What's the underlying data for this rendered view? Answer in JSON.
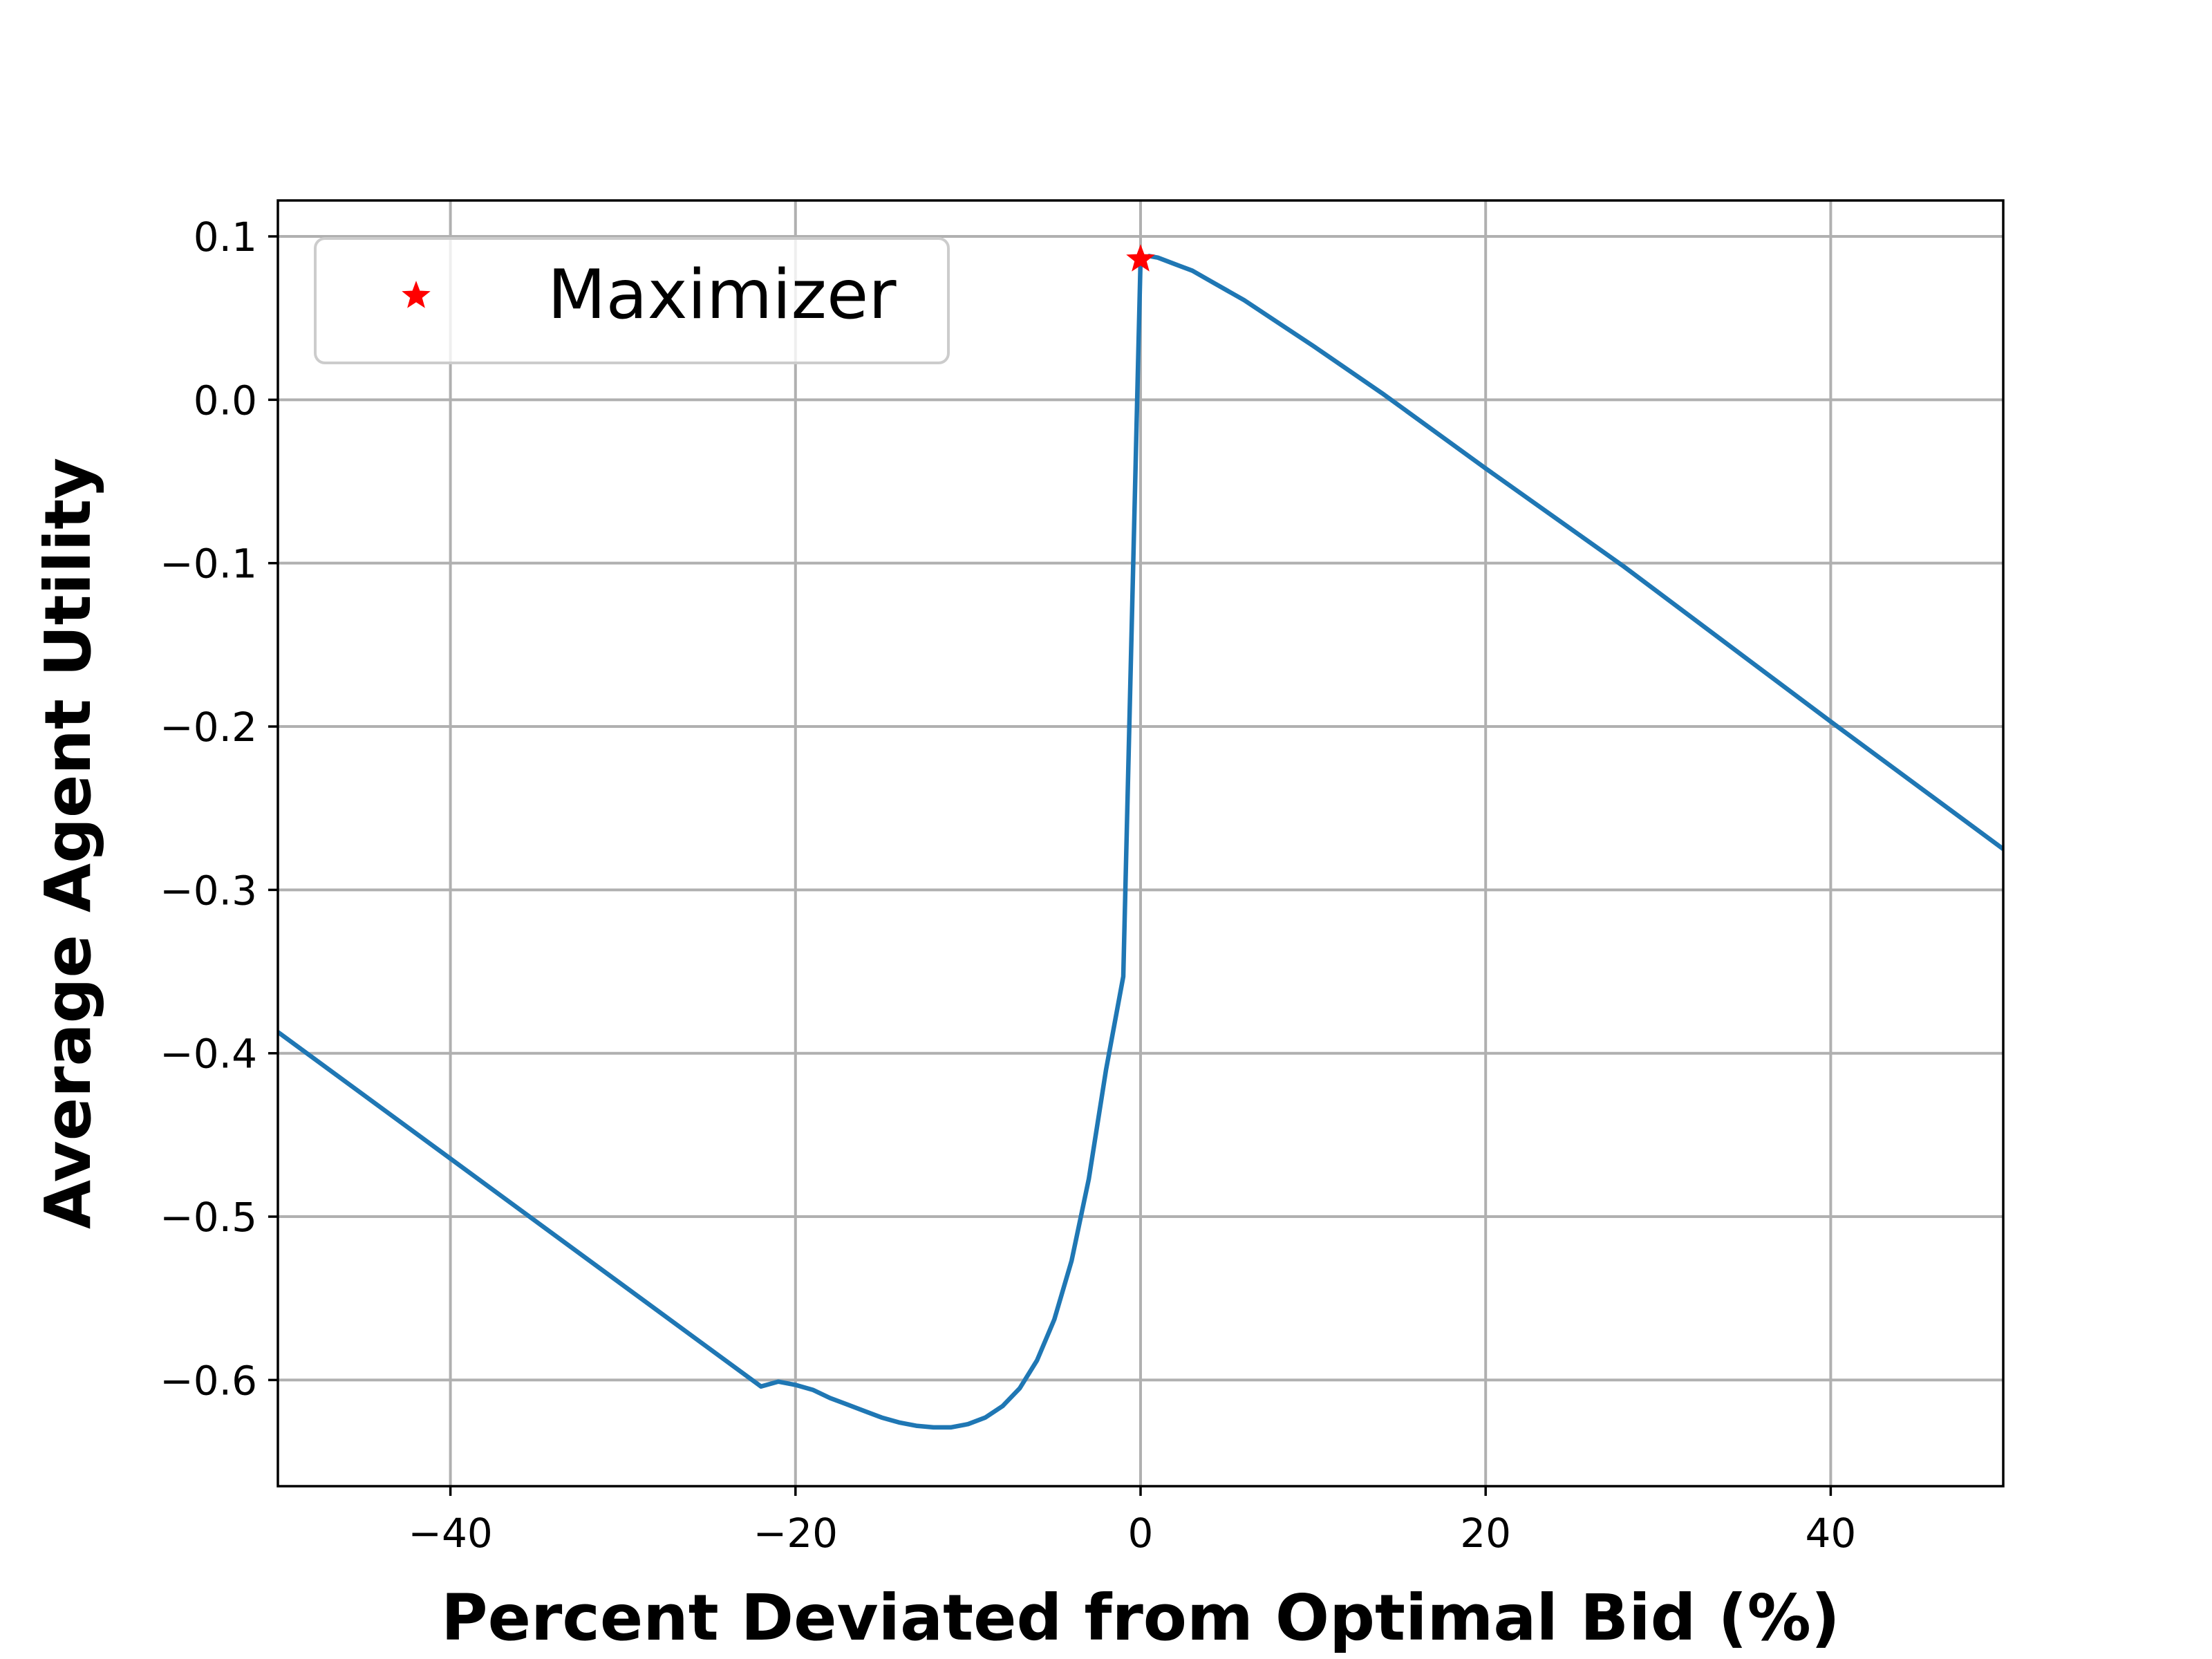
{
  "chart_data": {
    "type": "line",
    "title": "",
    "xlabel": "Percent Deviated from Optimal Bid (%)",
    "ylabel": "Average Agent Utility",
    "xlim": [
      -50,
      50
    ],
    "ylim": [
      -0.665,
      0.122
    ],
    "xticks": [
      -40,
      -20,
      0,
      20,
      40
    ],
    "xtick_labels": [
      "−40",
      "−20",
      "0",
      "20",
      "40"
    ],
    "yticks": [
      0.1,
      0.0,
      -0.1,
      -0.2,
      -0.3,
      -0.4,
      -0.5,
      -0.6
    ],
    "ytick_labels": [
      "0.1",
      "0.0",
      "−0.1",
      "−0.2",
      "−0.3",
      "−0.4",
      "−0.5",
      "−0.6"
    ],
    "grid": true,
    "legend": {
      "position": "top-left",
      "entries": [
        "Maximizer"
      ]
    },
    "series": [
      {
        "color": "#1f77b4",
        "x": [
          -50,
          -22,
          -21,
          -20,
          -19,
          -18,
          -17,
          -16,
          -15,
          -14,
          -13,
          -12,
          -11,
          -10,
          -9,
          -8,
          -7,
          -6,
          -5,
          -4,
          -3,
          -2,
          -1,
          0,
          0.5,
          1,
          2,
          3,
          4,
          5,
          6,
          8,
          10,
          14,
          20,
          28,
          40,
          50
        ],
        "y": [
          -0.387,
          -0.604,
          -0.601,
          -0.603,
          -0.606,
          -0.611,
          -0.615,
          -0.619,
          -0.623,
          -0.626,
          -0.628,
          -0.629,
          -0.629,
          -0.627,
          -0.623,
          -0.616,
          -0.605,
          -0.588,
          -0.563,
          -0.527,
          -0.477,
          -0.41,
          -0.353,
          0.086,
          0.088,
          0.087,
          0.083,
          0.079,
          0.073,
          0.067,
          0.061,
          0.047,
          0.033,
          0.004,
          -0.042,
          -0.102,
          -0.197,
          -0.275
        ]
      },
      {
        "name": "Maximizer",
        "marker": "star",
        "color": "#ff0000",
        "x": [
          0
        ],
        "y": [
          0.086
        ]
      }
    ]
  }
}
